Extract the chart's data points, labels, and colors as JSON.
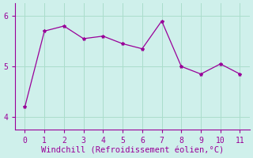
{
  "x": [
    0,
    1,
    2,
    3,
    4,
    5,
    6,
    7,
    8,
    9,
    10,
    11
  ],
  "y": [
    4.2,
    5.7,
    5.8,
    5.55,
    5.6,
    5.45,
    5.35,
    5.9,
    5.0,
    4.85,
    5.05,
    4.85
  ],
  "line_color": "#990099",
  "marker": "*",
  "marker_size": 3,
  "background_color": "#cff0eb",
  "grid_color": "#aaddcc",
  "xlabel": "Windchill (Refroidissement éolien,°C)",
  "xlabel_color": "#990099",
  "xlabel_fontsize": 7.5,
  "tick_color": "#990099",
  "tick_fontsize": 7,
  "xlim": [
    -0.5,
    11.5
  ],
  "ylim": [
    3.75,
    6.25
  ],
  "yticks": [
    4,
    5,
    6
  ],
  "xticks": [
    0,
    1,
    2,
    3,
    4,
    5,
    6,
    7,
    8,
    9,
    10,
    11
  ]
}
